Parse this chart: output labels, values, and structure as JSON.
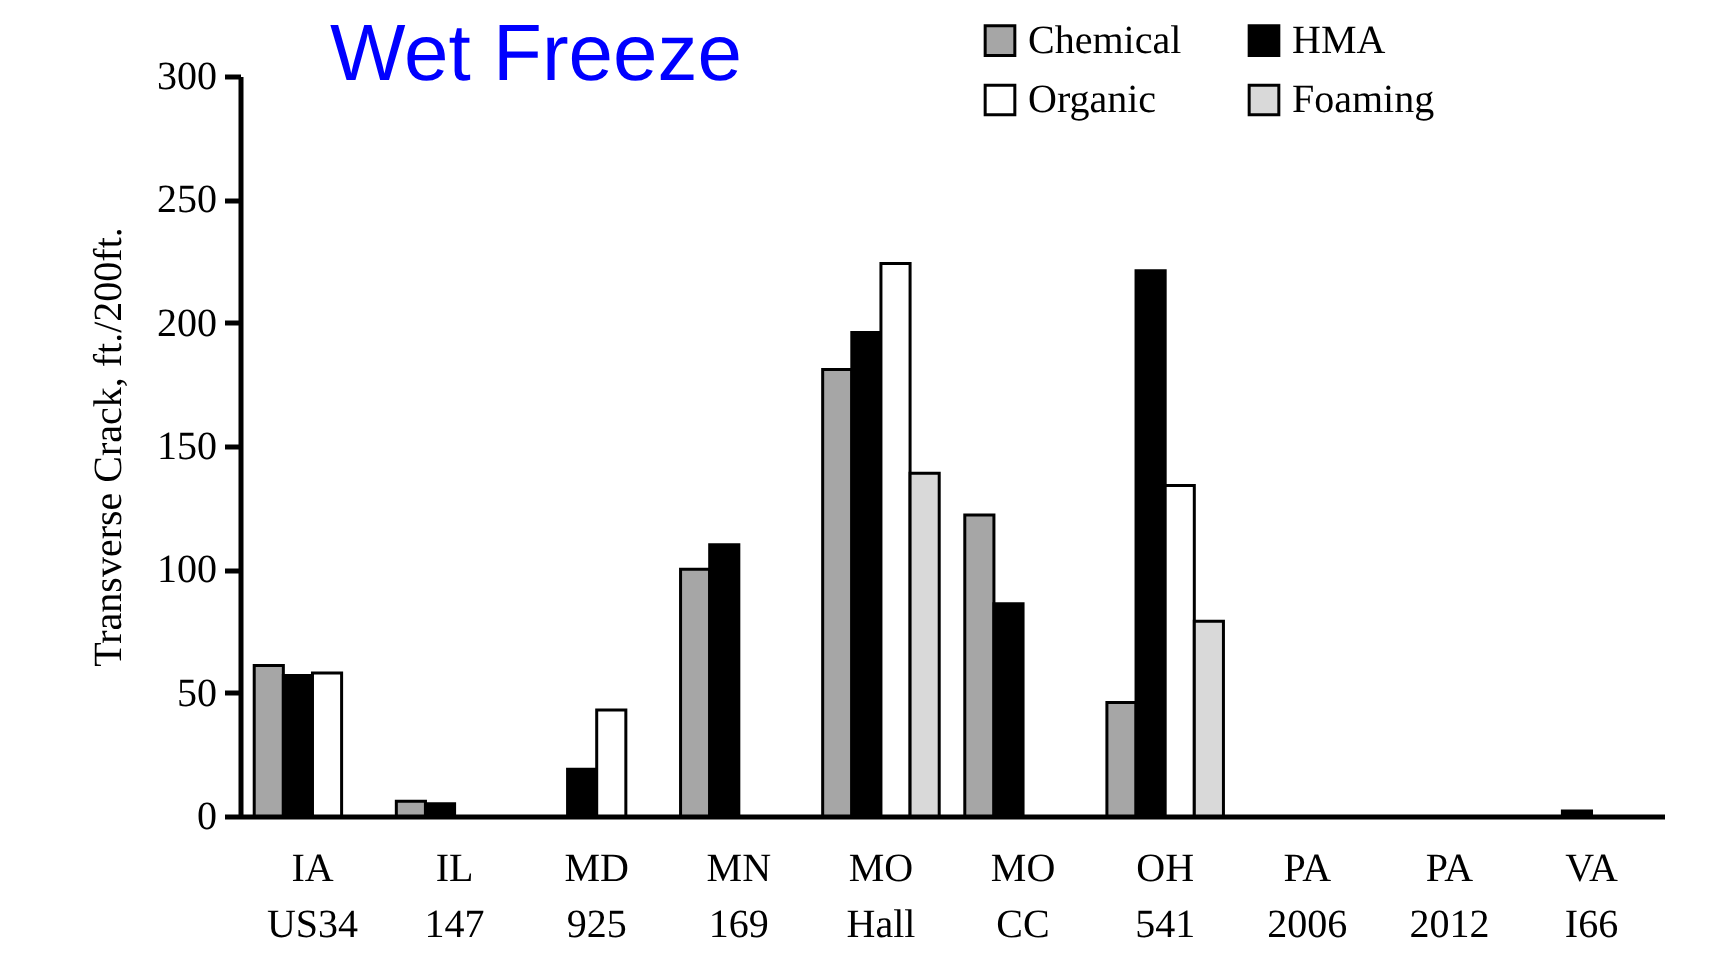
{
  "chart_data": {
    "type": "bar",
    "title": "Wet Freeze",
    "ylabel": "Transverse Crack, ft./200ft.",
    "categories": [
      "IA\nUS34",
      "IL\n147",
      "MD\n925",
      "MN\n169",
      "MO\nHall",
      "MO\nCC",
      "OH\n541",
      "PA\n2006",
      "PA\n2012",
      "VA\nI66"
    ],
    "series": [
      {
        "name": "Chemical",
        "color": "#a6a6a6",
        "values": [
          61,
          6,
          null,
          100,
          181,
          122,
          46,
          null,
          null,
          null
        ]
      },
      {
        "name": "HMA",
        "color": "#000000",
        "values": [
          57,
          5,
          19,
          110,
          196,
          86,
          221,
          null,
          null,
          2
        ]
      },
      {
        "name": "Organic",
        "color": "#ffffff",
        "values": [
          58,
          null,
          43,
          null,
          224,
          null,
          134,
          null,
          null,
          null
        ]
      },
      {
        "name": "Foaming",
        "color": "#d9d9d9",
        "values": [
          null,
          null,
          null,
          null,
          139,
          null,
          79,
          null,
          null,
          null
        ]
      }
    ],
    "ylim": [
      0,
      300
    ],
    "yticks": [
      0,
      50,
      100,
      150,
      200,
      250,
      300
    ],
    "legend": "top right"
  }
}
